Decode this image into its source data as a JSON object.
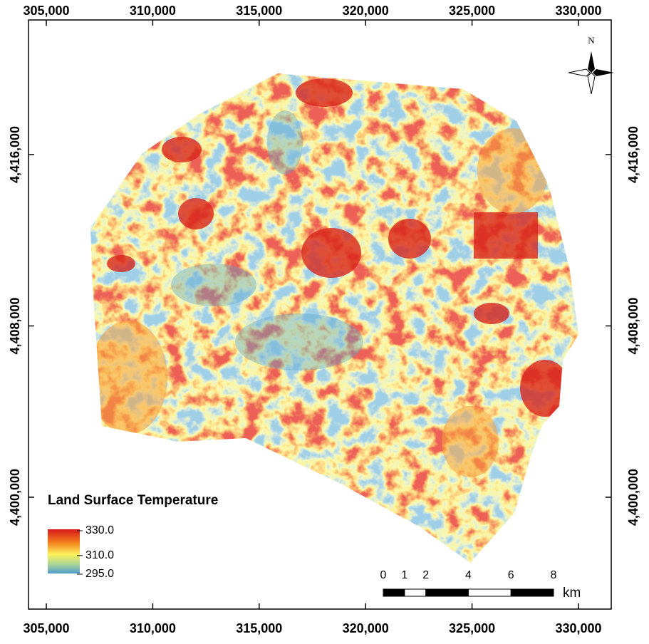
{
  "map": {
    "x_ticks": [
      {
        "value": 305000,
        "label": "305,000"
      },
      {
        "value": 310000,
        "label": "310,000"
      },
      {
        "value": 315000,
        "label": "315,000"
      },
      {
        "value": 320000,
        "label": "320,000"
      },
      {
        "value": 325000,
        "label": "325,000"
      },
      {
        "value": 330000,
        "label": "330,000"
      }
    ],
    "y_ticks": [
      {
        "value": 4416000,
        "label": "4,416,000"
      },
      {
        "value": 4408000,
        "label": "4,408,000"
      },
      {
        "value": 4400000,
        "label": "4,400,000"
      }
    ],
    "north": "N",
    "legend": {
      "title": "Land Surface Temperature",
      "stops": [
        {
          "value": 330,
          "label": "330.0"
        },
        {
          "value": 310,
          "label": "310.0"
        },
        {
          "value": 295,
          "label": "295.0"
        }
      ]
    },
    "scale_bar": {
      "ticks": [
        0,
        1,
        2,
        4,
        6,
        8
      ],
      "unit": "km"
    }
  }
}
